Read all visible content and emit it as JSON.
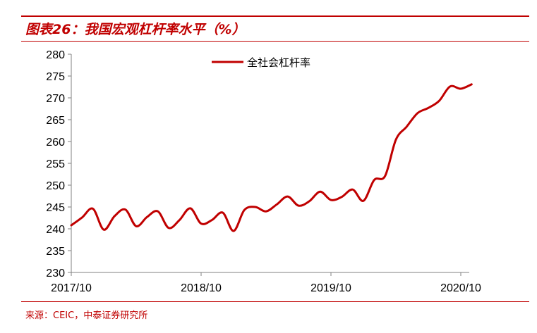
{
  "header": {
    "title": "图表26：我国宏观杠杆率水平（%）"
  },
  "footer": {
    "source": "来源：CEIC，中泰证券研究所"
  },
  "colors": {
    "accent": "#c00000",
    "series": "#c00000",
    "axis": "#808080"
  },
  "chart_data": {
    "type": "line",
    "title": "",
    "xlabel": "",
    "ylabel": "",
    "ylim": [
      230,
      280
    ],
    "y_ticks": [
      "230",
      "235",
      "240",
      "245",
      "250",
      "255",
      "260",
      "265",
      "270",
      "275",
      "280"
    ],
    "x_ticks": [
      "2017/10",
      "2018/10",
      "2019/10",
      "2020/10"
    ],
    "grid": false,
    "legend": "top-center",
    "x_unit": "months since 2017/10",
    "series": [
      {
        "name": "全社会杠杆率",
        "points": [
          [
            0,
            240.8
          ],
          [
            1,
            242.6
          ],
          [
            2,
            244.6
          ],
          [
            3,
            239.8
          ],
          [
            4,
            242.9
          ],
          [
            5,
            244.4
          ],
          [
            6,
            240.6
          ],
          [
            7,
            242.7
          ],
          [
            8,
            244.0
          ],
          [
            9,
            240.2
          ],
          [
            10,
            242.0
          ],
          [
            11,
            244.7
          ],
          [
            12,
            241.2
          ],
          [
            13,
            242.0
          ],
          [
            14,
            243.7
          ],
          [
            15,
            239.5
          ],
          [
            16,
            244.3
          ],
          [
            17,
            245.0
          ],
          [
            18,
            244.0
          ],
          [
            19,
            245.6
          ],
          [
            20,
            247.4
          ],
          [
            21,
            245.3
          ],
          [
            22,
            246.3
          ],
          [
            23,
            248.5
          ],
          [
            24,
            246.6
          ],
          [
            25,
            247.3
          ],
          [
            26,
            249.0
          ],
          [
            27,
            246.4
          ],
          [
            28,
            251.2
          ],
          [
            29,
            252.1
          ],
          [
            30,
            260.4
          ],
          [
            31,
            263.4
          ],
          [
            32,
            266.5
          ],
          [
            33,
            267.7
          ],
          [
            34,
            269.3
          ],
          [
            35,
            272.6
          ],
          [
            36,
            272.1
          ],
          [
            37,
            273.1
          ]
        ]
      }
    ]
  }
}
